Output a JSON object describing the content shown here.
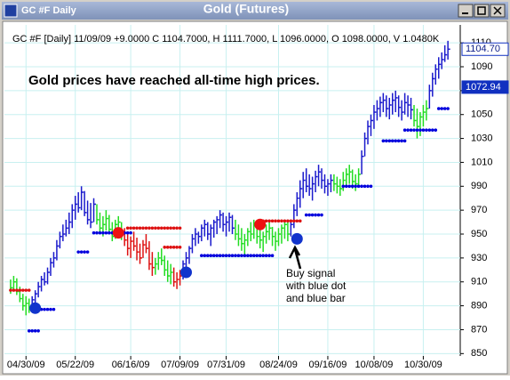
{
  "window": {
    "title": "GC #F Daily"
  },
  "chart_data": {
    "type": "hlc-bar",
    "title": "Gold (Futures)",
    "subtitle": "GC #F [Daily] 11/09/09 +9.0000 C 1104.7000, H 1111.7000, L 1096.0000, O 1098.0000, V 1.0480K",
    "headline": "Gold prices have reached all-time high prices.",
    "note_lines": [
      "Buy signal",
      "with blue dot",
      "and blue bar"
    ],
    "xlim": [
      -2,
      146
    ],
    "xticks": [
      {
        "value": 5,
        "label": "04/30/09"
      },
      {
        "value": 21,
        "label": "05/22/09"
      },
      {
        "value": 39,
        "label": "06/16/09"
      },
      {
        "value": 55,
        "label": "07/09/09"
      },
      {
        "value": 70,
        "label": "07/31/09"
      },
      {
        "value": 87,
        "label": "08/24/09"
      },
      {
        "value": 103,
        "label": "09/16/09"
      },
      {
        "value": 118,
        "label": "10/08/09"
      },
      {
        "value": 134,
        "label": "10/30/09"
      }
    ],
    "ylim": [
      848,
      1125
    ],
    "yticks": [
      850,
      870,
      890,
      910,
      930,
      950,
      970,
      990,
      1010,
      1030,
      1050,
      1070,
      1090,
      1110
    ],
    "grid": true,
    "runs": [
      {
        "color": "#22dd22",
        "bars": [
          [
            912,
            900,
            905
          ],
          [
            915,
            903,
            910
          ],
          [
            913,
            899,
            902
          ],
          [
            906,
            893,
            896
          ],
          [
            900,
            886,
            890
          ],
          [
            898,
            882,
            892
          ],
          [
            896,
            884,
            888
          ]
        ]
      },
      {
        "color": "#1a1acc",
        "bars": [
          [
            898,
            886,
            895
          ],
          [
            903,
            892,
            900
          ],
          [
            910,
            897,
            906
          ],
          [
            915,
            902,
            912
          ],
          [
            918,
            907,
            910
          ],
          [
            922,
            908,
            918
          ],
          [
            930,
            915,
            926
          ],
          [
            935,
            922,
            930
          ],
          [
            945,
            928,
            940
          ],
          [
            952,
            938,
            948
          ],
          [
            958,
            944,
            950
          ],
          [
            962,
            948,
            955
          ],
          [
            968,
            950,
            960
          ],
          [
            975,
            955,
            970
          ],
          [
            982,
            962,
            975
          ],
          [
            985,
            968,
            972
          ],
          [
            990,
            970,
            985
          ],
          [
            986,
            965,
            968
          ],
          [
            978,
            958,
            962
          ],
          [
            976,
            955,
            960
          ],
          [
            980,
            960,
            975
          ]
        ]
      },
      {
        "color": "#22dd22",
        "bars": [
          [
            975,
            958,
            962
          ],
          [
            968,
            952,
            955
          ],
          [
            965,
            948,
            958
          ],
          [
            970,
            953,
            963
          ],
          [
            966,
            950,
            954
          ],
          [
            960,
            944,
            948
          ],
          [
            962,
            946,
            958
          ],
          [
            965,
            950,
            960
          ],
          [
            960,
            945,
            950
          ]
        ]
      },
      {
        "color": "#dd1111",
        "bars": [
          [
            955,
            940,
            945
          ],
          [
            950,
            932,
            938
          ],
          [
            948,
            930,
            944
          ],
          [
            952,
            936,
            940
          ],
          [
            947,
            928,
            935
          ],
          [
            942,
            925,
            930
          ],
          [
            945,
            930,
            941
          ],
          [
            950,
            934,
            938
          ],
          [
            944,
            920,
            925
          ],
          [
            935,
            915,
            922
          ]
        ]
      },
      {
        "color": "#22dd22",
        "bars": [
          [
            930,
            916,
            925
          ],
          [
            935,
            920,
            930
          ],
          [
            938,
            924,
            928
          ],
          [
            932,
            915,
            920
          ],
          [
            928,
            910,
            915
          ],
          [
            925,
            908,
            918
          ]
        ]
      },
      {
        "color": "#dd1111",
        "bars": [
          [
            922,
            906,
            910
          ],
          [
            918,
            904,
            912
          ],
          [
            920,
            907,
            915
          ]
        ]
      },
      {
        "color": "#1a1acc",
        "bars": [
          [
            928,
            912,
            925
          ],
          [
            935,
            920,
            930
          ],
          [
            940,
            925,
            938
          ],
          [
            950,
            934,
            946
          ],
          [
            955,
            940,
            950
          ],
          [
            952,
            942,
            948
          ],
          [
            958,
            944,
            955
          ],
          [
            962,
            948,
            958
          ],
          [
            960,
            945,
            950
          ],
          [
            958,
            940,
            955
          ],
          [
            962,
            947,
            960
          ],
          [
            965,
            950,
            962
          ],
          [
            970,
            955,
            966
          ],
          [
            968,
            952,
            958
          ],
          [
            965,
            948,
            960
          ],
          [
            968,
            952,
            964
          ],
          [
            966,
            950,
            955
          ]
        ]
      },
      {
        "color": "#22dd22",
        "bars": [
          [
            962,
            945,
            950
          ],
          [
            958,
            940,
            946
          ],
          [
            955,
            936,
            942
          ],
          [
            950,
            932,
            945
          ],
          [
            955,
            940,
            952
          ],
          [
            960,
            944,
            950
          ],
          [
            962,
            946,
            958
          ],
          [
            958,
            942,
            948
          ],
          [
            955,
            938,
            945
          ],
          [
            952,
            935,
            948
          ],
          [
            958,
            942,
            952
          ],
          [
            960,
            945,
            955
          ],
          [
            956,
            940,
            948
          ],
          [
            952,
            936,
            944
          ],
          [
            955,
            940,
            950
          ],
          [
            958,
            942,
            955
          ],
          [
            962,
            946,
            958
          ],
          [
            960,
            944,
            950
          ]
        ]
      },
      {
        "color": "#1a1acc",
        "bars": [
          [
            962,
            948,
            958
          ],
          [
            975,
            955,
            970
          ],
          [
            985,
            965,
            980
          ],
          [
            995,
            972,
            988
          ],
          [
            1002,
            980,
            995
          ],
          [
            1005,
            985,
            990
          ],
          [
            1000,
            982,
            988
          ],
          [
            998,
            978,
            992
          ],
          [
            1003,
            985,
            998
          ],
          [
            1008,
            990,
            1002
          ],
          [
            1005,
            988,
            995
          ],
          [
            1000,
            984,
            990
          ],
          [
            996,
            982,
            992
          ],
          [
            1000,
            985,
            995
          ]
        ]
      },
      {
        "color": "#22dd22",
        "bars": [
          [
            1000,
            986,
            992
          ],
          [
            998,
            984,
            990
          ],
          [
            996,
            982,
            988
          ],
          [
            1002,
            986,
            995
          ],
          [
            1005,
            990,
            1000
          ],
          [
            1008,
            992,
            1002
          ],
          [
            1004,
            988,
            994
          ],
          [
            1000,
            986,
            992
          ],
          [
            1005,
            990,
            1000
          ]
        ]
      },
      {
        "color": "#1a1acc",
        "bars": [
          [
            1020,
            1000,
            1015
          ],
          [
            1035,
            1015,
            1030
          ],
          [
            1045,
            1025,
            1040
          ],
          [
            1050,
            1032,
            1045
          ],
          [
            1058,
            1038,
            1052
          ],
          [
            1062,
            1045,
            1055
          ],
          [
            1065,
            1048,
            1060
          ],
          [
            1068,
            1052,
            1062
          ],
          [
            1066,
            1048,
            1055
          ],
          [
            1064,
            1046,
            1058
          ],
          [
            1068,
            1050,
            1062
          ],
          [
            1070,
            1052,
            1064
          ],
          [
            1066,
            1048,
            1056
          ],
          [
            1062,
            1045,
            1052
          ],
          [
            1068,
            1050,
            1060
          ],
          [
            1066,
            1048,
            1058
          ],
          [
            1064,
            1046,
            1054
          ]
        ]
      },
      {
        "color": "#22dd22",
        "bars": [
          [
            1058,
            1040,
            1045
          ],
          [
            1055,
            1030,
            1040
          ],
          [
            1052,
            1032,
            1048
          ],
          [
            1058,
            1040,
            1052
          ],
          [
            1062,
            1045,
            1055
          ]
        ]
      },
      {
        "color": "#1a1acc",
        "bars": [
          [
            1075,
            1055,
            1070
          ],
          [
            1085,
            1065,
            1080
          ],
          [
            1092,
            1075,
            1088
          ],
          [
            1098,
            1080,
            1092
          ],
          [
            1102,
            1088,
            1096
          ],
          [
            1108,
            1094,
            1100
          ],
          [
            1111.7,
            1096,
            1104.7
          ]
        ]
      }
    ],
    "stops": [
      {
        "color": "#dd1111",
        "from": 0,
        "to": 6,
        "value": 903
      },
      {
        "color": "#0000dd",
        "from": 6,
        "to": 9,
        "value": 869
      },
      {
        "color": "#0000dd",
        "from": 10,
        "to": 14,
        "value": 887
      },
      {
        "color": "#0000dd",
        "from": 22,
        "to": 25,
        "value": 935
      },
      {
        "color": "#0000dd",
        "from": 27,
        "to": 39,
        "value": 951
      },
      {
        "color": "#dd1111",
        "from": 38,
        "to": 55,
        "value": 955
      },
      {
        "color": "#dd1111",
        "from": 50,
        "to": 55,
        "value": 939
      },
      {
        "color": "#0000dd",
        "from": 62,
        "to": 85,
        "value": 932
      },
      {
        "color": "#dd1111",
        "from": 81,
        "to": 94,
        "value": 961
      },
      {
        "color": "#0000dd",
        "from": 96,
        "to": 101,
        "value": 966
      },
      {
        "color": "#0000dd",
        "from": 108,
        "to": 117,
        "value": 990
      },
      {
        "color": "#0000dd",
        "from": 121,
        "to": 128,
        "value": 1028
      },
      {
        "color": "#0000dd",
        "from": 128,
        "to": 138,
        "value": 1037
      },
      {
        "color": "#0000dd",
        "from": 139,
        "to": 142,
        "value": 1055
      }
    ],
    "signals": [
      {
        "x": 8,
        "y": 888,
        "color": "#1133cc"
      },
      {
        "x": 35,
        "y": 951,
        "color": "#ee1111"
      },
      {
        "x": 57,
        "y": 918,
        "color": "#1133cc"
      },
      {
        "x": 81,
        "y": 958,
        "color": "#ee1111"
      },
      {
        "x": 93,
        "y": 946,
        "color": "#1133cc"
      }
    ],
    "price_tags": [
      {
        "value": 1104.7,
        "label": "1104.70"
      },
      {
        "value": 1072.94,
        "label": "1072.94"
      }
    ]
  }
}
